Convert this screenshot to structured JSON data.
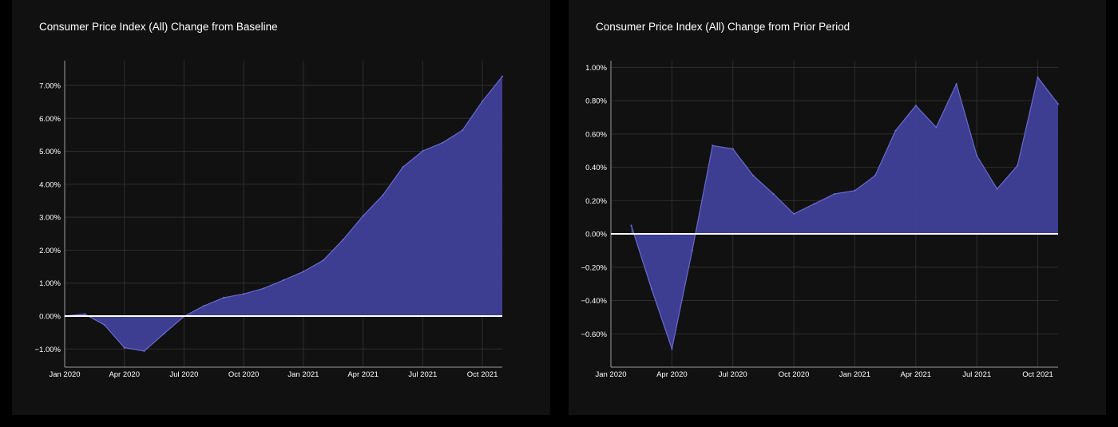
{
  "chart_data": [
    {
      "type": "area",
      "title": "Consumer Price Index (All) Change from Baseline",
      "xlabel": "",
      "ylabel": "",
      "x": [
        "2020-01",
        "2020-02",
        "2020-03",
        "2020-04",
        "2020-05",
        "2020-06",
        "2020-07",
        "2020-08",
        "2020-09",
        "2020-10",
        "2020-11",
        "2020-12",
        "2021-01",
        "2021-02",
        "2021-03",
        "2021-04",
        "2021-05",
        "2021-06",
        "2021-07",
        "2021-08",
        "2021-09",
        "2021-10",
        "2021-11"
      ],
      "values": [
        0.0,
        0.06,
        -0.27,
        -0.96,
        -1.06,
        -0.53,
        -0.01,
        0.31,
        0.56,
        0.67,
        0.84,
        1.09,
        1.35,
        1.69,
        2.32,
        3.04,
        3.67,
        4.52,
        5.01,
        5.26,
        5.64,
        6.52,
        7.27
      ],
      "ylim": [
        -1.55,
        7.75
      ],
      "xticks": [
        {
          "date": "2020-01",
          "label": "Jan 2020"
        },
        {
          "date": "2020-04",
          "label": "Apr 2020"
        },
        {
          "date": "2020-07",
          "label": "Jul 2020"
        },
        {
          "date": "2020-10",
          "label": "Oct 2020"
        },
        {
          "date": "2021-01",
          "label": "Jan 2021"
        },
        {
          "date": "2021-04",
          "label": "Apr 2021"
        },
        {
          "date": "2021-07",
          "label": "Jul 2021"
        },
        {
          "date": "2021-10",
          "label": "Oct 2021"
        }
      ],
      "yticks": [
        {
          "value": -1,
          "label": "−1.00%"
        },
        {
          "value": 0,
          "label": "0.00%"
        },
        {
          "value": 1,
          "label": "1.00%"
        },
        {
          "value": 2,
          "label": "2.00%"
        },
        {
          "value": 3,
          "label": "3.00%"
        },
        {
          "value": 4,
          "label": "4.00%"
        },
        {
          "value": 5,
          "label": "5.00%"
        },
        {
          "value": 6,
          "label": "6.00%"
        },
        {
          "value": 7,
          "label": "7.00%"
        }
      ],
      "grid": true,
      "fill_color": "#3f3f96",
      "line_color": "#6a6ad2",
      "zero_line_color": "#ffffff"
    },
    {
      "type": "area",
      "title": "Consumer Price Index (All) Change from Prior Period",
      "xlabel": "",
      "ylabel": "",
      "x": [
        "2020-02",
        "2020-03",
        "2020-04",
        "2020-05",
        "2020-06",
        "2020-07",
        "2020-08",
        "2020-09",
        "2020-10",
        "2020-11",
        "2020-12",
        "2021-01",
        "2021-02",
        "2021-03",
        "2021-04",
        "2021-05",
        "2021-06",
        "2021-07",
        "2021-08",
        "2021-09",
        "2021-10",
        "2021-11"
      ],
      "values": [
        0.05,
        -0.33,
        -0.69,
        -0.1,
        0.53,
        0.51,
        0.35,
        0.24,
        0.12,
        0.18,
        0.24,
        0.26,
        0.35,
        0.62,
        0.77,
        0.64,
        0.9,
        0.47,
        0.27,
        0.41,
        0.94,
        0.78
      ],
      "ylim": [
        -0.8,
        1.04
      ],
      "xticks": [
        {
          "date": "2020-01",
          "label": "Jan 2020"
        },
        {
          "date": "2020-04",
          "label": "Apr 2020"
        },
        {
          "date": "2020-07",
          "label": "Jul 2020"
        },
        {
          "date": "2020-10",
          "label": "Oct 2020"
        },
        {
          "date": "2021-01",
          "label": "Jan 2021"
        },
        {
          "date": "2021-04",
          "label": "Apr 2021"
        },
        {
          "date": "2021-07",
          "label": "Jul 2021"
        },
        {
          "date": "2021-10",
          "label": "Oct 2021"
        }
      ],
      "yticks": [
        {
          "value": -0.6,
          "label": "−0.60%"
        },
        {
          "value": -0.4,
          "label": "−0.40%"
        },
        {
          "value": -0.2,
          "label": "−0.20%"
        },
        {
          "value": 0,
          "label": "0.00%"
        },
        {
          "value": 0.2,
          "label": "0.20%"
        },
        {
          "value": 0.4,
          "label": "0.40%"
        },
        {
          "value": 0.6,
          "label": "0.60%"
        },
        {
          "value": 0.8,
          "label": "0.80%"
        },
        {
          "value": 1.0,
          "label": "1.00%"
        }
      ],
      "grid": true,
      "fill_color": "#3f3f96",
      "line_color": "#6a6ad2",
      "zero_line_color": "#ffffff"
    }
  ]
}
